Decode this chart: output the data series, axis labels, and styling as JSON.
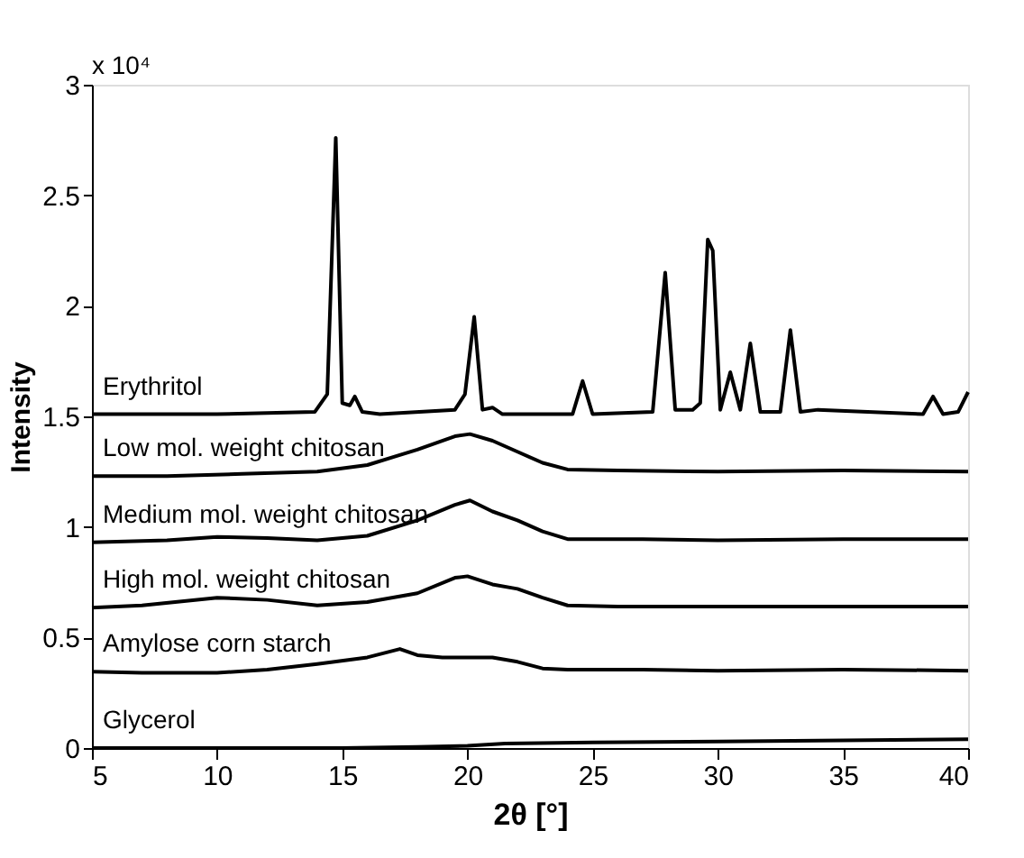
{
  "chart_data": {
    "type": "line",
    "xlabel": "2θ [°]",
    "ylabel": "Intensity",
    "annotations": [
      "x 10⁴"
    ],
    "xlim": [
      5,
      40
    ],
    "xticks": [
      5,
      10,
      15,
      20,
      25,
      30,
      35,
      40
    ],
    "ylim": [
      0,
      3
    ],
    "yticks": [
      0,
      0.5,
      1,
      1.5,
      2,
      2.5,
      3
    ],
    "grid": false,
    "legend": false,
    "marker": "none",
    "line_style": "solid",
    "series": [
      {
        "name": "Erythritol",
        "color": "#000000",
        "x": [
          5,
          10,
          13.9,
          14.4,
          14.74,
          15.0,
          15.3,
          15.5,
          15.8,
          16.5,
          19.5,
          19.9,
          20.27,
          20.6,
          21.0,
          21.4,
          24.2,
          24.6,
          25.0,
          27.4,
          27.9,
          28.3,
          29.0,
          29.3,
          29.6,
          29.8,
          30.1,
          30.5,
          30.9,
          31.3,
          31.7,
          32.5,
          32.9,
          33.3,
          34.0,
          38.2,
          38.6,
          39.0,
          39.6,
          40
        ],
        "values": [
          1.51,
          1.51,
          1.52,
          1.6,
          2.76,
          1.56,
          1.55,
          1.59,
          1.52,
          1.51,
          1.53,
          1.6,
          1.95,
          1.53,
          1.54,
          1.51,
          1.51,
          1.66,
          1.51,
          1.52,
          2.15,
          1.53,
          1.53,
          1.56,
          2.3,
          2.25,
          1.53,
          1.7,
          1.53,
          1.83,
          1.52,
          1.52,
          1.89,
          1.52,
          1.53,
          1.51,
          1.59,
          1.51,
          1.52,
          1.61
        ]
      },
      {
        "name": "Low mol. weight chitosan",
        "color": "#000000",
        "x": [
          5,
          8,
          11,
          14,
          16,
          18,
          19.5,
          20.1,
          21,
          22,
          23,
          24,
          26,
          30,
          35,
          40
        ],
        "values": [
          1.23,
          1.23,
          1.24,
          1.25,
          1.28,
          1.35,
          1.41,
          1.42,
          1.39,
          1.34,
          1.29,
          1.26,
          1.255,
          1.25,
          1.255,
          1.25
        ]
      },
      {
        "name": "Medium mol. weight chitosan",
        "color": "#000000",
        "x": [
          5,
          8,
          10,
          12,
          14,
          16,
          18,
          19.5,
          20.1,
          21,
          22,
          23,
          24,
          27,
          30,
          35,
          40
        ],
        "values": [
          0.93,
          0.94,
          0.955,
          0.95,
          0.94,
          0.96,
          1.03,
          1.1,
          1.12,
          1.07,
          1.03,
          0.98,
          0.945,
          0.945,
          0.94,
          0.945,
          0.945
        ]
      },
      {
        "name": "High mol. weight chitosan",
        "color": "#000000",
        "x": [
          5,
          7,
          10,
          12,
          14,
          16,
          18,
          19.5,
          20.0,
          21,
          22,
          23,
          24,
          26,
          30,
          35,
          40
        ],
        "values": [
          0.635,
          0.645,
          0.68,
          0.67,
          0.645,
          0.66,
          0.7,
          0.77,
          0.777,
          0.74,
          0.72,
          0.68,
          0.645,
          0.64,
          0.64,
          0.64,
          0.64
        ]
      },
      {
        "name": "Amylose corn starch",
        "color": "#000000",
        "x": [
          5,
          7,
          10,
          12,
          14,
          16,
          17.3,
          18,
          19,
          20,
          21,
          22,
          23,
          24,
          27,
          30,
          35,
          40
        ],
        "values": [
          0.345,
          0.34,
          0.34,
          0.355,
          0.38,
          0.41,
          0.448,
          0.42,
          0.41,
          0.41,
          0.41,
          0.39,
          0.36,
          0.355,
          0.355,
          0.35,
          0.355,
          0.35
        ]
      },
      {
        "name": "Glycerol",
        "color": "#000000",
        "x": [
          5,
          10,
          15,
          18,
          20,
          21.5,
          25,
          30,
          35,
          40
        ],
        "values": [
          0.0,
          0.0,
          0.0,
          0.005,
          0.01,
          0.02,
          0.025,
          0.03,
          0.035,
          0.04
        ]
      }
    ]
  }
}
